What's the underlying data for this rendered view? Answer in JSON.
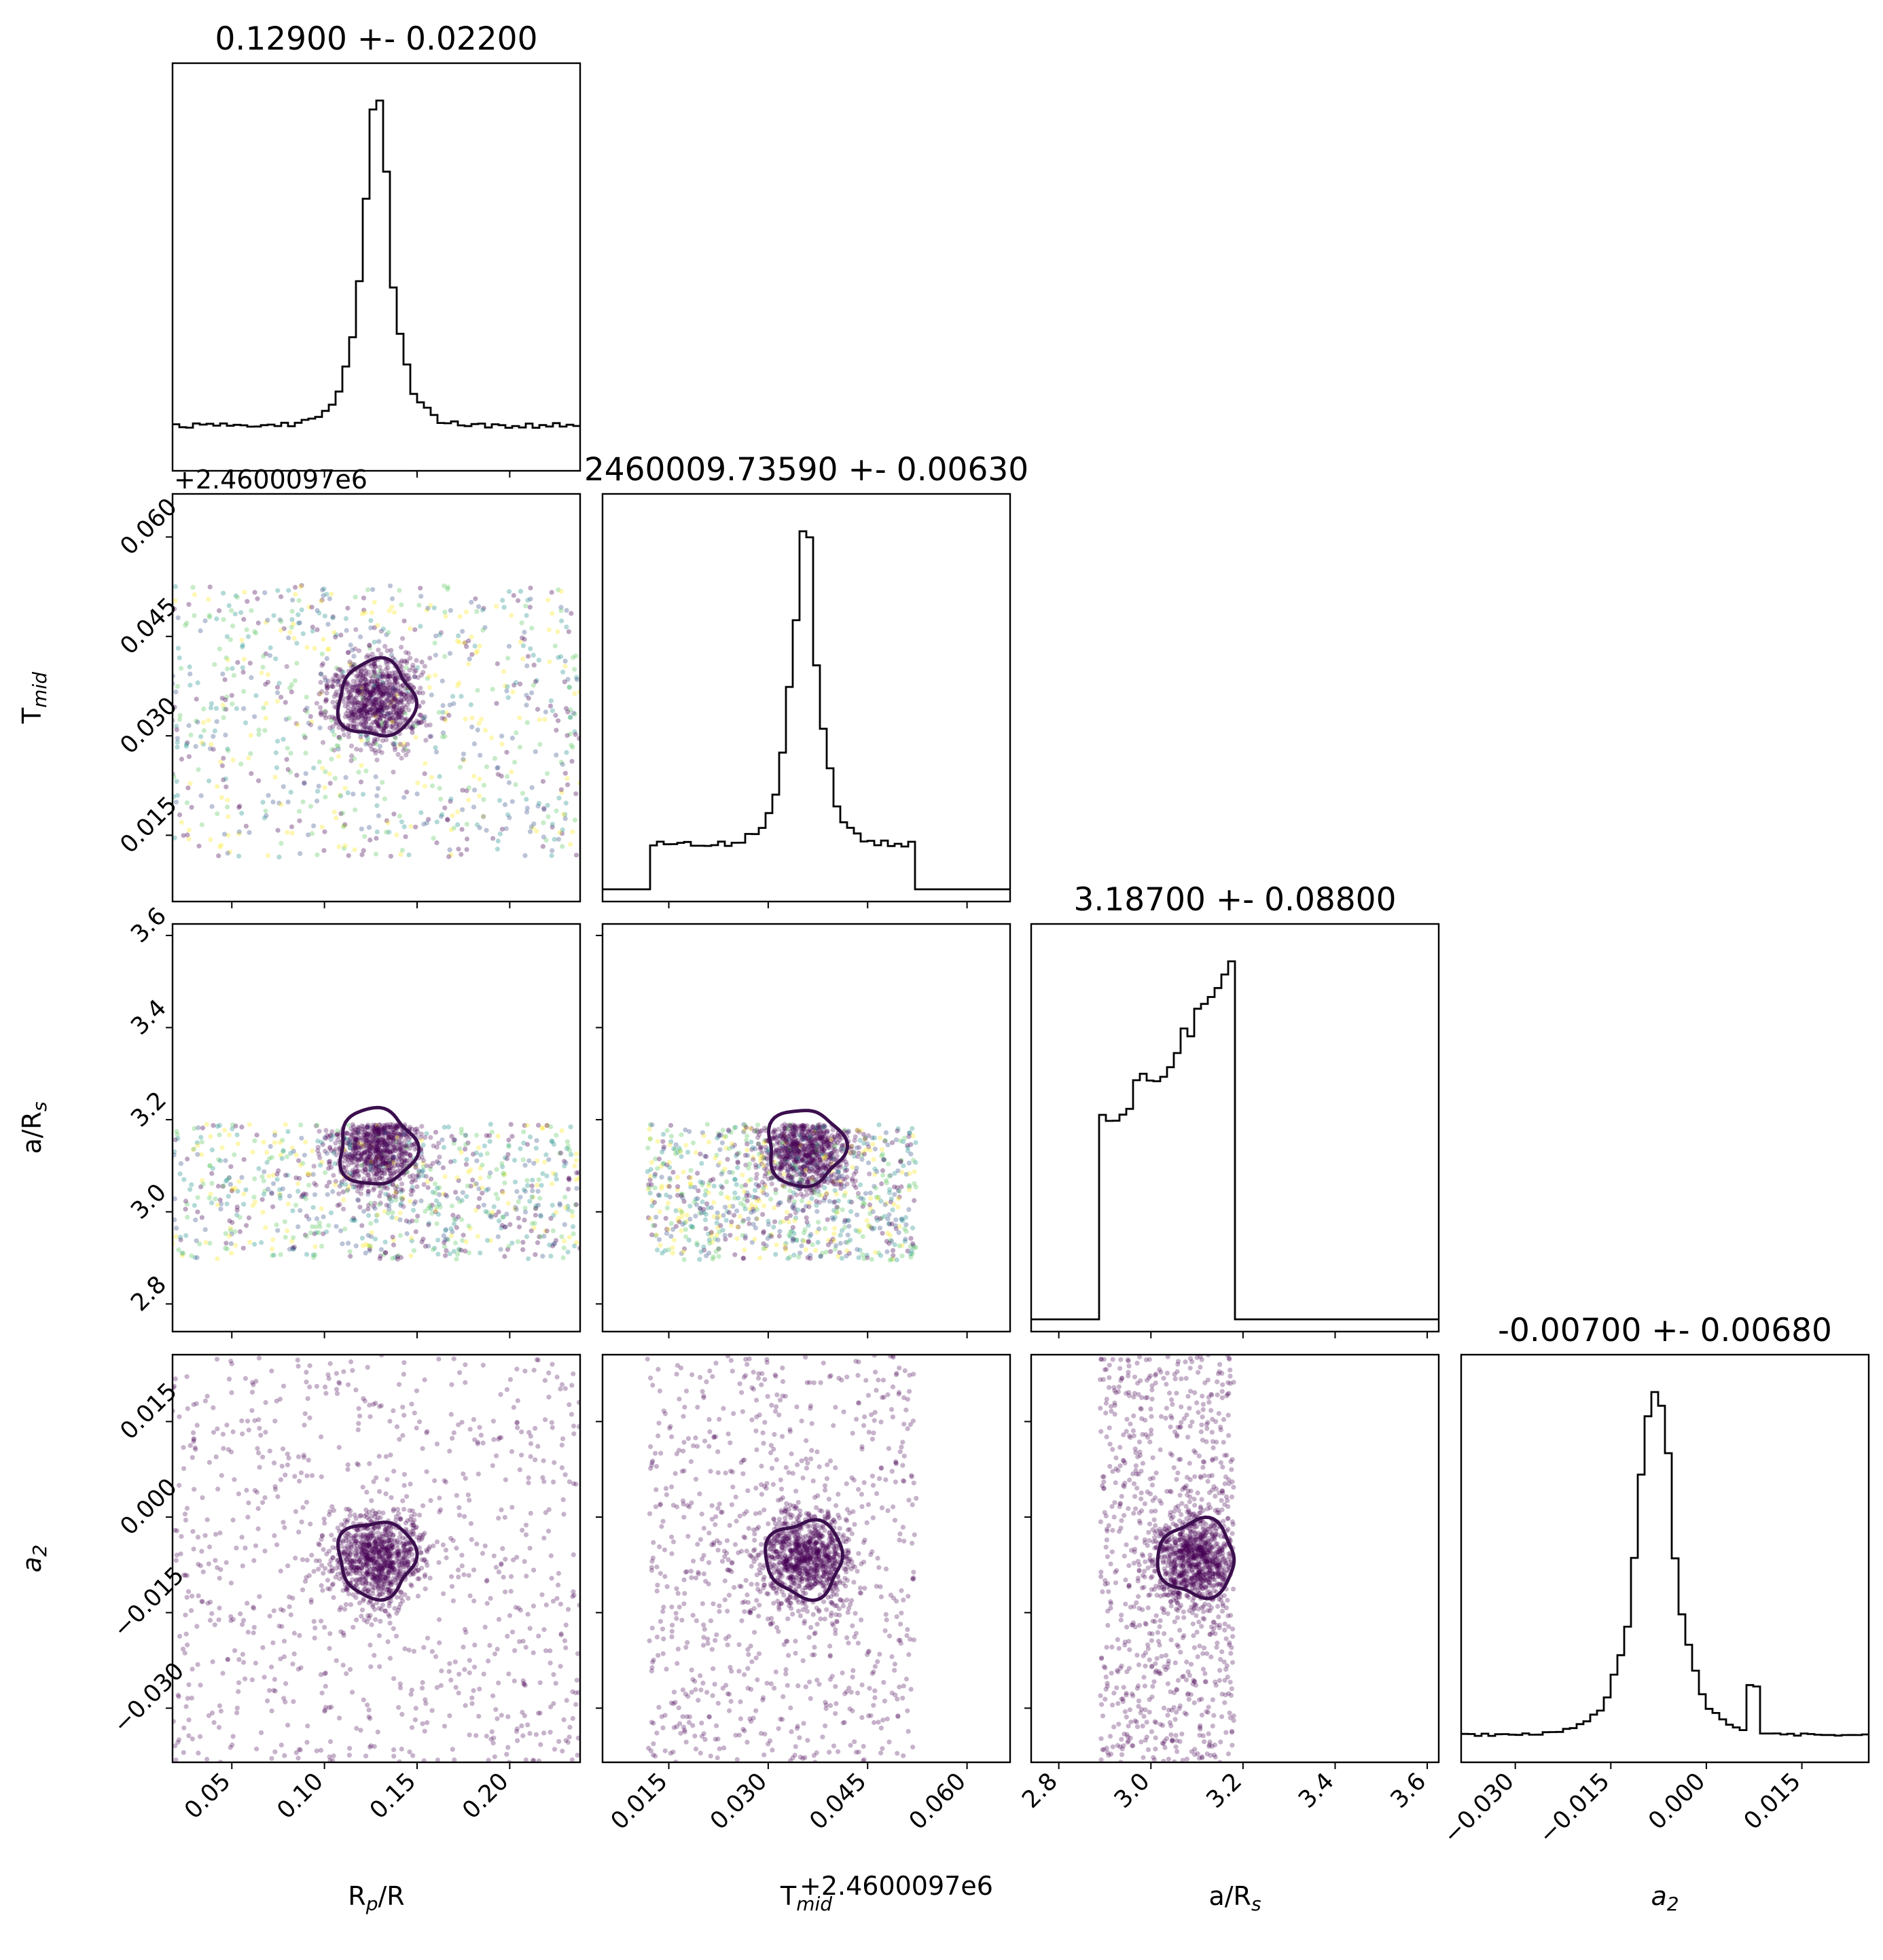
{
  "chart_data": {
    "type": "corner",
    "parameters": [
      {
        "key": "rp",
        "label": "R_p/R_s",
        "range": [
          0.018,
          0.238
        ],
        "ticks": [
          "0.05",
          "0.10",
          "0.15",
          "0.20"
        ],
        "tick_values": [
          0.05,
          0.1,
          0.15,
          0.2
        ],
        "title": "0.12900 +- 0.02200"
      },
      {
        "key": "tmid",
        "label": "T_mid",
        "offset_label": "+2.4600097e6",
        "range": [
          0.005,
          0.0665
        ],
        "ticks": [
          "0.015",
          "0.030",
          "0.045",
          "0.060"
        ],
        "tick_values": [
          0.015,
          0.03,
          0.045,
          0.06
        ],
        "title": "2460009.73590 +- 0.00630"
      },
      {
        "key": "ars",
        "label": "a/R_s",
        "range": [
          2.74,
          3.625
        ],
        "ticks": [
          "2.8",
          "3.0",
          "3.2",
          "3.4",
          "3.6"
        ],
        "tick_values": [
          2.8,
          3.0,
          3.2,
          3.4,
          3.6
        ],
        "title": "3.18700 +- 0.08800"
      },
      {
        "key": "a2",
        "label": "a_2",
        "range": [
          -0.0385,
          0.0255
        ],
        "ticks": [
          "−0.030",
          "−0.015",
          "0.000",
          "0.015"
        ],
        "tick_values": [
          -0.03,
          -0.015,
          0.0,
          0.015
        ],
        "title": "-0.00700 +- 0.00680"
      }
    ],
    "histograms": {
      "rp": {
        "bins": 60,
        "peak": 0.128,
        "width": 0.0085,
        "floor": 0.09
      },
      "tmid": {
        "bins": 60,
        "peak": 0.0355,
        "width": 0.0022,
        "floor": 0.12,
        "support": [
          0.0117,
          0.0524
        ]
      },
      "ars": {
        "bins": 60,
        "support": [
          2.89,
          3.185
        ],
        "start_level": 0.57,
        "end_level": 1.0
      },
      "a2": {
        "bins": 60,
        "peak": -0.008,
        "width": 0.0032,
        "floor": 0.04,
        "secondary_peak": 0.0077
      }
    },
    "scatter_pairs": [
      {
        "x": "rp",
        "y": "tmid",
        "x_support": [
          0.018,
          0.238
        ],
        "y_support": [
          0.0117,
          0.0528
        ],
        "cluster": [
          0.128,
          0.0355
        ],
        "colored": true
      },
      {
        "x": "rp",
        "y": "ars",
        "x_support": [
          0.018,
          0.238
        ],
        "y_support": [
          2.895,
          3.19
        ],
        "cluster": [
          0.128,
          3.14
        ],
        "colored": true
      },
      {
        "x": "tmid",
        "y": "ars",
        "x_support": [
          0.0117,
          0.0524
        ],
        "y_support": [
          2.895,
          3.19
        ],
        "cluster": [
          0.0355,
          3.14
        ],
        "colored": true
      },
      {
        "x": "rp",
        "y": "a2",
        "x_support": [
          0.018,
          0.238
        ],
        "y_support": [
          -0.0385,
          0.0255
        ],
        "cluster": [
          0.128,
          -0.0065
        ],
        "colored": false
      },
      {
        "x": "tmid",
        "y": "a2",
        "x_support": [
          0.0117,
          0.0524
        ],
        "y_support": [
          -0.0385,
          0.0255
        ],
        "cluster": [
          0.0355,
          -0.0065
        ],
        "colored": false
      },
      {
        "x": "ars",
        "y": "a2",
        "x_support": [
          2.89,
          3.18
        ],
        "y_support": [
          -0.0385,
          0.0255
        ],
        "cluster": [
          3.1,
          -0.0065
        ],
        "colored": false
      }
    ],
    "contour_color": "#3b0f4e",
    "point_color": "#440154",
    "point_palette": [
      "#440154",
      "#3b528b",
      "#21918c",
      "#5ec962",
      "#fde725"
    ],
    "grid": false,
    "legend": "none"
  }
}
